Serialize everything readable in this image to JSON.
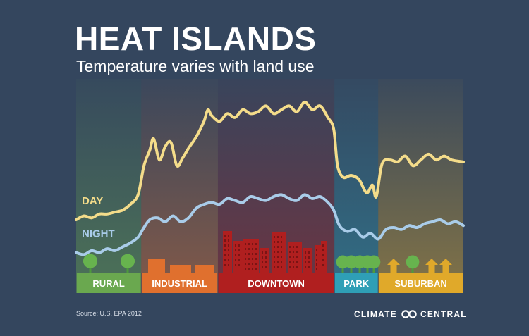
{
  "title": "HEAT ISLANDS",
  "subtitle": "Temperature varies with land use",
  "source": "Source: U.S. EPA 2012",
  "brand": {
    "left": "CLIMATE",
    "right": "CENTRAL",
    "logo_icon": "double-ring-logo-icon"
  },
  "colors": {
    "background": "#34465e",
    "day_line": "#f4dc8a",
    "night_line": "#a9cce9",
    "rural": "#6aa84f",
    "industrial": "#e0702e",
    "downtown": "#b01f1f",
    "park": "#2f9fb6",
    "suburban": "#e0a92a"
  },
  "chart_data": {
    "type": "line",
    "title": "HEAT ISLANDS",
    "subtitle": "Temperature varies with land use",
    "xlabel": "",
    "ylabel": "",
    "grid": false,
    "legend": "inline-left",
    "xlim": [
      0,
      100
    ],
    "ylim": [
      0,
      100
    ],
    "zones": [
      {
        "key": "rural",
        "label": "RURAL",
        "start": 0,
        "end": 16.8,
        "color": "#6aa84f"
      },
      {
        "key": "industrial",
        "label": "INDUSTRIAL",
        "start": 16.8,
        "end": 36.6,
        "color": "#e0702e"
      },
      {
        "key": "downtown",
        "label": "DOWNTOWN",
        "start": 36.6,
        "end": 66.7,
        "color": "#b01f1f"
      },
      {
        "key": "park",
        "label": "PARK",
        "start": 66.7,
        "end": 78.0,
        "color": "#2f9fb6"
      },
      {
        "key": "suburban",
        "label": "SUBURBAN",
        "start": 78.0,
        "end": 100,
        "color": "#e0a92a"
      }
    ],
    "series": [
      {
        "name": "DAY",
        "color": "#f4dc8a",
        "x": [
          0,
          2,
          4,
          6,
          8,
          10,
          12,
          14,
          16,
          17.5,
          19,
          20,
          21.5,
          23,
          24.5,
          26,
          27.5,
          29,
          31,
          33,
          34,
          35,
          37,
          39,
          41,
          43,
          45,
          47,
          49,
          51,
          53,
          55,
          57,
          59,
          61,
          63,
          65,
          66.5,
          67.5,
          69,
          71,
          73,
          75,
          76.5,
          77.5,
          79,
          81,
          83,
          85,
          87,
          89,
          91,
          93,
          95,
          97,
          100
        ],
        "values": [
          27,
          29,
          28,
          30,
          30,
          31,
          32,
          35,
          40,
          55,
          63,
          69,
          58,
          65,
          67,
          55,
          59,
          64,
          70,
          78,
          84,
          81,
          78,
          82,
          80,
          84,
          82,
          83,
          86,
          82,
          84,
          86,
          83,
          88,
          84,
          86,
          80,
          74,
          55,
          49,
          50,
          48,
          41,
          45,
          39,
          56,
          58,
          57,
          60,
          55,
          58,
          61,
          58,
          60,
          58,
          57
        ]
      },
      {
        "name": "NIGHT",
        "color": "#a9cce9",
        "x": [
          0,
          2,
          4,
          6,
          8,
          10,
          12,
          14,
          16,
          17.5,
          19,
          21,
          23,
          25,
          27,
          29,
          31,
          33,
          35,
          37,
          39,
          41,
          43,
          45,
          47,
          49,
          51,
          53,
          55,
          57,
          59,
          61,
          63,
          65,
          66.5,
          68,
          70,
          72,
          74,
          76,
          78,
          80,
          82,
          84,
          86,
          88,
          90,
          92,
          94,
          96,
          98,
          100
        ],
        "values": [
          10,
          9,
          11,
          10,
          12,
          11,
          13,
          15,
          18,
          23,
          27,
          28,
          26,
          29,
          26,
          28,
          33,
          35,
          36,
          35,
          38,
          37,
          36,
          39,
          38,
          37,
          39,
          40,
          38,
          37,
          40,
          38,
          39,
          36,
          32,
          24,
          21,
          22,
          18,
          20,
          17,
          22,
          23,
          22,
          24,
          23,
          25,
          26,
          27,
          25,
          26,
          24
        ]
      }
    ],
    "line_labels": [
      {
        "series": "DAY",
        "text": "DAY"
      },
      {
        "series": "NIGHT",
        "text": "NIGHT"
      }
    ]
  }
}
